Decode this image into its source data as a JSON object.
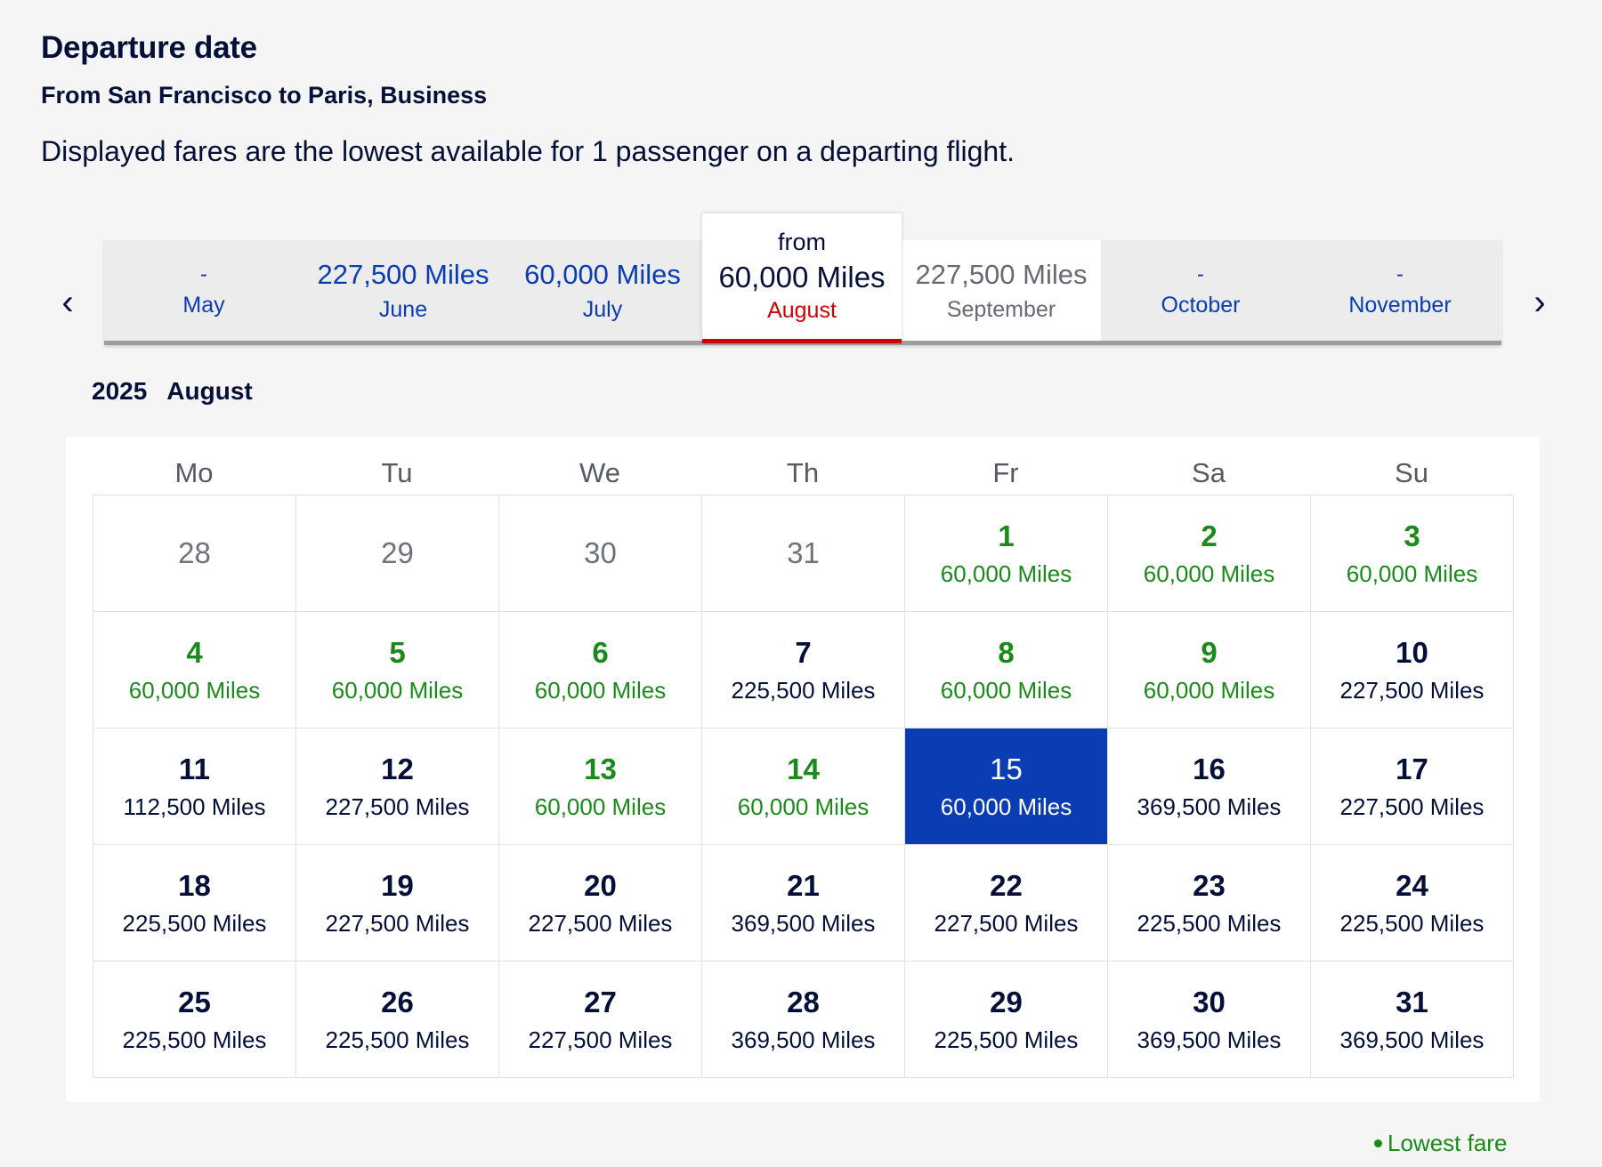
{
  "header": {
    "title": "Departure date",
    "subtitle": "From San Francisco to Paris, Business",
    "note": "Displayed fares are the lowest available for 1 passenger on a departing flight."
  },
  "carousel": {
    "prev_icon": "chevron-left-icon",
    "next_icon": "chevron-right-icon",
    "prev_glyph": "‹",
    "next_glyph": "›",
    "months": [
      {
        "name": "May",
        "price": "-"
      },
      {
        "name": "June",
        "price": "227,500 Miles"
      },
      {
        "name": "July",
        "price": "60,000 Miles"
      },
      {
        "name": "August",
        "prefix": "from",
        "price": "60,000 Miles"
      },
      {
        "name": "September",
        "price": "227,500 Miles"
      },
      {
        "name": "October",
        "price": "-"
      },
      {
        "name": "November",
        "price": "-"
      }
    ]
  },
  "calendar": {
    "year": "2025",
    "month": "August",
    "weekdays": [
      "Mo",
      "Tu",
      "We",
      "Th",
      "Fr",
      "Sa",
      "Su"
    ],
    "days": [
      {
        "day": "28",
        "fare": ""
      },
      {
        "day": "29",
        "fare": ""
      },
      {
        "day": "30",
        "fare": ""
      },
      {
        "day": "31",
        "fare": ""
      },
      {
        "day": "1",
        "fare": "60,000 Miles"
      },
      {
        "day": "2",
        "fare": "60,000 Miles"
      },
      {
        "day": "3",
        "fare": "60,000 Miles"
      },
      {
        "day": "4",
        "fare": "60,000 Miles"
      },
      {
        "day": "5",
        "fare": "60,000 Miles"
      },
      {
        "day": "6",
        "fare": "60,000 Miles"
      },
      {
        "day": "7",
        "fare": "225,500 Miles"
      },
      {
        "day": "8",
        "fare": "60,000 Miles"
      },
      {
        "day": "9",
        "fare": "60,000 Miles"
      },
      {
        "day": "10",
        "fare": "227,500 Miles"
      },
      {
        "day": "11",
        "fare": "112,500 Miles"
      },
      {
        "day": "12",
        "fare": "227,500 Miles"
      },
      {
        "day": "13",
        "fare": "60,000 Miles"
      },
      {
        "day": "14",
        "fare": "60,000 Miles"
      },
      {
        "day": "15",
        "fare": "60,000 Miles"
      },
      {
        "day": "16",
        "fare": "369,500 Miles"
      },
      {
        "day": "17",
        "fare": "227,500 Miles"
      },
      {
        "day": "18",
        "fare": "225,500 Miles"
      },
      {
        "day": "19",
        "fare": "227,500 Miles"
      },
      {
        "day": "20",
        "fare": "227,500 Miles"
      },
      {
        "day": "21",
        "fare": "369,500 Miles"
      },
      {
        "day": "22",
        "fare": "227,500 Miles"
      },
      {
        "day": "23",
        "fare": "225,500 Miles"
      },
      {
        "day": "24",
        "fare": "225,500 Miles"
      },
      {
        "day": "25",
        "fare": "225,500 Miles"
      },
      {
        "day": "26",
        "fare": "225,500 Miles"
      },
      {
        "day": "27",
        "fare": "227,500 Miles"
      },
      {
        "day": "28",
        "fare": "369,500 Miles"
      },
      {
        "day": "29",
        "fare": "225,500 Miles"
      },
      {
        "day": "30",
        "fare": "369,500 Miles"
      },
      {
        "day": "31",
        "fare": "369,500 Miles"
      }
    ]
  },
  "legend": {
    "label": "Lowest fare"
  },
  "colors": {
    "accent": "#0a3cb4",
    "lowest": "#1a8a1a",
    "selected_month": "#d30000",
    "text": "#051039"
  }
}
